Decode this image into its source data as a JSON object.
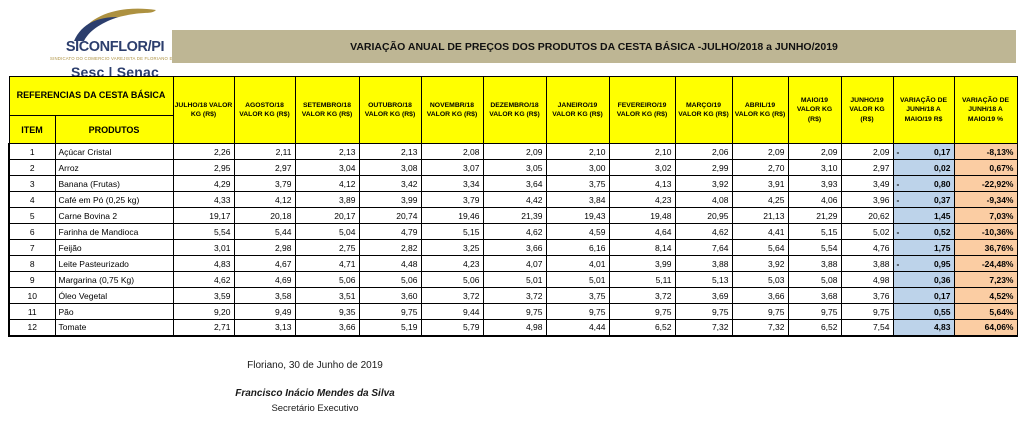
{
  "logo": {
    "title": "SICONFLOR/PI",
    "subtitle": "SINDICATO DO COMERCIO VAREJISTA DE FLORIANO E REGIÃO",
    "network": "Sesc | Senac"
  },
  "title_bar": {
    "text": "VARIAÇÃO ANUAL DE PREÇOS DOS PRODUTOS DA CESTA BÁSICA -JULHO/2018 a JUNHO/2019"
  },
  "table": {
    "corner_header": "REFERENCIAS DA CESTA BÁSICA",
    "item_header": "ITEM",
    "products_header": "PRODUTOS",
    "month_headers": [
      "JULHO/18 VALOR KG (R$)",
      "AGOSTO/18 VALOR KG (R$)",
      "SETEMBRO/18 VALOR KG (R$)",
      "OUTUBRO/18 VALOR KG (R$)",
      "NOVEMBR/18 VALOR KG (R$)",
      "DEZEMBRO/18 VALOR KG (R$)",
      "JANEIRO/19 VALOR KG (R$)",
      "FEVEREIRO/19 VALOR KG (R$)",
      "MARÇO/19 VALOR KG (R$)",
      "ABRIL/19 VALOR KG (R$)",
      "MAIO/19 VALOR KG (R$)",
      "JUNHO/19 VALOR KG (R$)"
    ],
    "variation_rs_header": "VARIAÇÃO DE JUNH/18 A MAIO/19 R$",
    "variation_pct_header": "VARIAÇÃO DE JUNH/18 A MAIO/19 %",
    "rows": [
      {
        "item": "1",
        "product": "Açúcar Cristal",
        "values": [
          "2,26",
          "2,11",
          "2,13",
          "2,13",
          "2,08",
          "2,09",
          "2,10",
          "2,10",
          "2,06",
          "2,09",
          "2,09",
          "2,09"
        ],
        "rs_sign": "-",
        "variation_rs": "0,17",
        "variation_pct": "-8,13%"
      },
      {
        "item": "2",
        "product": "Arroz",
        "values": [
          "2,95",
          "2,97",
          "3,04",
          "3,08",
          "3,07",
          "3,05",
          "3,00",
          "3,02",
          "2,99",
          "2,70",
          "3,10",
          "2,97"
        ],
        "rs_sign": "",
        "variation_rs": "0,02",
        "variation_pct": "0,67%"
      },
      {
        "item": "3",
        "product": "Banana (Frutas)",
        "values": [
          "4,29",
          "3,79",
          "4,12",
          "3,42",
          "3,34",
          "3,64",
          "3,75",
          "4,13",
          "3,92",
          "3,91",
          "3,93",
          "3,49"
        ],
        "rs_sign": "-",
        "variation_rs": "0,80",
        "variation_pct": "-22,92%"
      },
      {
        "item": "4",
        "product": "Café em Pó (0,25 kg)",
        "values": [
          "4,33",
          "4,12",
          "3,89",
          "3,99",
          "3,79",
          "4,42",
          "3,84",
          "4,23",
          "4,08",
          "4,25",
          "4,06",
          "3,96"
        ],
        "rs_sign": "-",
        "variation_rs": "0,37",
        "variation_pct": "-9,34%"
      },
      {
        "item": "5",
        "product": "Carne Bovina 2",
        "values": [
          "19,17",
          "20,18",
          "20,17",
          "20,74",
          "19,46",
          "21,39",
          "19,43",
          "19,48",
          "20,95",
          "21,13",
          "21,29",
          "20,62"
        ],
        "rs_sign": "",
        "variation_rs": "1,45",
        "variation_pct": "7,03%"
      },
      {
        "item": "6",
        "product": "Farinha de Mandioca",
        "values": [
          "5,54",
          "5,44",
          "5,04",
          "4,79",
          "5,15",
          "4,62",
          "4,59",
          "4,64",
          "4,62",
          "4,41",
          "5,15",
          "5,02"
        ],
        "rs_sign": "-",
        "variation_rs": "0,52",
        "variation_pct": "-10,36%"
      },
      {
        "item": "7",
        "product": "Feijão",
        "values": [
          "3,01",
          "2,98",
          "2,75",
          "2,82",
          "3,25",
          "3,66",
          "6,16",
          "8,14",
          "7,64",
          "5,64",
          "5,54",
          "4,76"
        ],
        "rs_sign": "",
        "variation_rs": "1,75",
        "variation_pct": "36,76%"
      },
      {
        "item": "8",
        "product": "Leite Pasteurizado",
        "values": [
          "4,83",
          "4,67",
          "4,71",
          "4,48",
          "4,23",
          "4,07",
          "4,01",
          "3,99",
          "3,88",
          "3,92",
          "3,88",
          "3,88"
        ],
        "rs_sign": "-",
        "variation_rs": "0,95",
        "variation_pct": "-24,48%"
      },
      {
        "item": "9",
        "product": "Margarina (0,75 Kg)",
        "values": [
          "4,62",
          "4,69",
          "5,06",
          "5,06",
          "5,06",
          "5,01",
          "5,01",
          "5,11",
          "5,13",
          "5,03",
          "5,08",
          "4,98"
        ],
        "rs_sign": "",
        "variation_rs": "0,36",
        "variation_pct": "7,23%"
      },
      {
        "item": "10",
        "product": "Óleo Vegetal",
        "values": [
          "3,59",
          "3,58",
          "3,51",
          "3,60",
          "3,72",
          "3,72",
          "3,75",
          "3,72",
          "3,69",
          "3,66",
          "3,68",
          "3,76"
        ],
        "rs_sign": "",
        "variation_rs": "0,17",
        "variation_pct": "4,52%"
      },
      {
        "item": "11",
        "product": "Pão",
        "values": [
          "9,20",
          "9,49",
          "9,35",
          "9,75",
          "9,44",
          "9,75",
          "9,75",
          "9,75",
          "9,75",
          "9,75",
          "9,75",
          "9,75"
        ],
        "rs_sign": "",
        "variation_rs": "0,55",
        "variation_pct": "5,64%"
      },
      {
        "item": "12",
        "product": "Tomate",
        "values": [
          "2,71",
          "3,13",
          "3,66",
          "5,19",
          "5,79",
          "4,98",
          "4,44",
          "6,52",
          "7,32",
          "7,32",
          "6,52",
          "7,54"
        ],
        "rs_sign": "",
        "variation_rs": "4,83",
        "variation_pct": "64,06%"
      }
    ],
    "colors": {
      "header_bg": "#ffff00",
      "variation_rs_bg": "#bdd3ea",
      "variation_pct_bg": "#fbcda3",
      "title_bar_bg": "#beb694"
    }
  },
  "footer": {
    "date_line": "Floriano, 30 de Junho de 2019",
    "signature_name": "Francisco Inácio Mendes da Silva",
    "signature_role": "Secretário Executivo"
  }
}
